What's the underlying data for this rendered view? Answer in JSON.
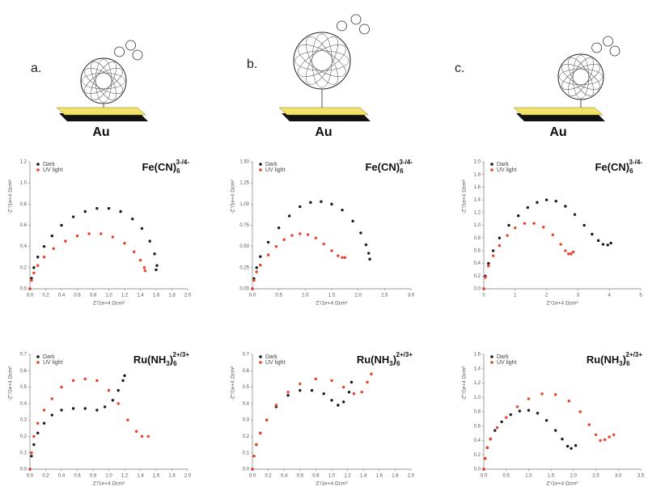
{
  "panels": [
    {
      "label": "a.",
      "substrate": "Au"
    },
    {
      "label": "b.",
      "substrate": "Au"
    },
    {
      "label": "c.",
      "substrate": "Au"
    }
  ],
  "chart_data": [
    {
      "type": "scatter",
      "formula": {
        "base": "Fe(CN)",
        "sub": "6",
        "sup": "3-/4-"
      },
      "x_label": "Z'/1e+4 Ωcm²",
      "y_label": "-Z''/1e+4 Ωcm²",
      "xlim": [
        0,
        2
      ],
      "xticks": [
        {
          "value": 0,
          "label": "0.0"
        },
        0.2,
        0.4,
        0.6,
        0.8,
        {
          "value": 1,
          "label": "1.0"
        },
        1.2,
        1.4,
        1.6,
        1.8,
        {
          "value": 2,
          "label": "2.0"
        }
      ],
      "ylim": [
        0,
        1.2
      ],
      "yticks": [
        {
          "value": 0,
          "label": "0.0"
        },
        0.2,
        0.4,
        0.6,
        0.8,
        {
          "value": 1,
          "label": "1.0"
        },
        1.2
      ],
      "series": [
        {
          "name": "Dark",
          "color": "#1a1a1a",
          "x": [
            0,
            0.02,
            0.05,
            0.1,
            0.18,
            0.28,
            0.4,
            0.55,
            0.7,
            0.85,
            1.0,
            1.15,
            1.3,
            1.42,
            1.52,
            1.58,
            1.61,
            1.6
          ],
          "values": [
            0,
            0.1,
            0.2,
            0.3,
            0.4,
            0.5,
            0.6,
            0.68,
            0.73,
            0.76,
            0.76,
            0.73,
            0.66,
            0.57,
            0.45,
            0.33,
            0.22,
            0.18
          ]
        },
        {
          "name": "UV light",
          "color": "#e8402a",
          "x": [
            0,
            0.02,
            0.05,
            0.1,
            0.18,
            0.3,
            0.45,
            0.6,
            0.75,
            0.9,
            1.05,
            1.2,
            1.32,
            1.4,
            1.45,
            1.46
          ],
          "values": [
            0,
            0.08,
            0.15,
            0.22,
            0.3,
            0.38,
            0.45,
            0.5,
            0.52,
            0.52,
            0.49,
            0.43,
            0.35,
            0.27,
            0.2,
            0.17
          ]
        }
      ]
    },
    {
      "type": "scatter",
      "formula": {
        "base": "Fe(CN)",
        "sub": "6",
        "sup": "3-/4-"
      },
      "x_label": "Z'/1e+4 Ωcm²",
      "y_label": "-Z''/1e+4 Ωcm²",
      "xlim": [
        0,
        3
      ],
      "xticks": [
        {
          "value": 0,
          "label": "0.0"
        },
        0.5,
        {
          "value": 1,
          "label": "1.0"
        },
        1.5,
        {
          "value": 2,
          "label": "2.0"
        },
        2.5,
        {
          "value": 3,
          "label": "3.0"
        }
      ],
      "ylim": [
        0,
        1.5
      ],
      "yticks": [
        {
          "value": 0,
          "label": "0.00"
        },
        0.25,
        {
          "value": 0.5,
          "label": "0.50"
        },
        0.75,
        {
          "value": 1,
          "label": "1.00"
        },
        1.25,
        {
          "value": 1.5,
          "label": "1.50"
        }
      ],
      "series": [
        {
          "name": "Dark",
          "color": "#1a1a1a",
          "x": [
            0,
            0.03,
            0.08,
            0.15,
            0.3,
            0.5,
            0.7,
            0.9,
            1.1,
            1.3,
            1.5,
            1.7,
            1.9,
            2.05,
            2.15,
            2.2,
            2.22
          ],
          "values": [
            0,
            0.12,
            0.25,
            0.38,
            0.55,
            0.72,
            0.86,
            0.97,
            1.02,
            1.03,
            1.0,
            0.93,
            0.8,
            0.66,
            0.52,
            0.42,
            0.35
          ]
        },
        {
          "name": "UV light",
          "color": "#e8402a",
          "x": [
            0,
            0.03,
            0.08,
            0.15,
            0.3,
            0.45,
            0.6,
            0.75,
            0.9,
            1.05,
            1.2,
            1.35,
            1.5,
            1.62,
            1.7,
            1.75
          ],
          "values": [
            0,
            0.1,
            0.2,
            0.28,
            0.4,
            0.5,
            0.58,
            0.63,
            0.65,
            0.64,
            0.6,
            0.53,
            0.45,
            0.39,
            0.37,
            0.37
          ]
        }
      ]
    },
    {
      "type": "scatter",
      "formula": {
        "base": "Fe(CN)",
        "sub": "6",
        "sup": "3-/4-"
      },
      "x_label": "Z'/1e+4 Ωcm²",
      "y_label": "-Z''/1e+4 Ωcm²",
      "xlim": [
        0,
        5
      ],
      "xticks": [
        0,
        1,
        2,
        3,
        4,
        5
      ],
      "ylim": [
        0,
        2
      ],
      "yticks": [
        {
          "value": 0,
          "label": "0.0"
        },
        0.2,
        0.4,
        0.6,
        0.8,
        {
          "value": 1,
          "label": "1.0"
        },
        1.2,
        1.4,
        1.6,
        1.8,
        {
          "value": 2,
          "label": "2.0"
        }
      ],
      "series": [
        {
          "name": "Dark",
          "color": "#1a1a1a",
          "x": [
            0,
            0.05,
            0.15,
            0.3,
            0.5,
            0.8,
            1.1,
            1.4,
            1.7,
            2.0,
            2.3,
            2.6,
            2.9,
            3.2,
            3.45,
            3.65,
            3.8,
            3.95,
            4.05
          ],
          "values": [
            0,
            0.2,
            0.4,
            0.6,
            0.8,
            1.0,
            1.15,
            1.28,
            1.36,
            1.4,
            1.38,
            1.3,
            1.17,
            1.0,
            0.86,
            0.76,
            0.7,
            0.69,
            0.72
          ]
        },
        {
          "name": "UV light",
          "color": "#e8402a",
          "x": [
            0,
            0.05,
            0.15,
            0.3,
            0.5,
            0.75,
            1.0,
            1.3,
            1.6,
            1.9,
            2.2,
            2.45,
            2.6,
            2.7,
            2.78,
            2.85
          ],
          "values": [
            0,
            0.18,
            0.36,
            0.52,
            0.68,
            0.84,
            0.96,
            1.03,
            1.03,
            0.97,
            0.85,
            0.7,
            0.6,
            0.55,
            0.55,
            0.58
          ]
        }
      ]
    },
    {
      "type": "scatter",
      "formula": {
        "base": "Ru(NH",
        "sub": "3",
        "close": ")",
        "sub2": "6",
        "sup": "2+/3+"
      },
      "x_label": "Z'/1e+4 Ωcm²",
      "y_label": "-Z''/1e+4 Ωcm²",
      "xlim": [
        0,
        2
      ],
      "xticks": [
        {
          "value": 0,
          "label": "0.0"
        },
        0.2,
        0.4,
        0.6,
        0.8,
        {
          "value": 1,
          "label": "1.0"
        },
        1.2,
        1.4,
        1.6,
        1.8,
        {
          "value": 2,
          "label": "2.0"
        }
      ],
      "ylim": [
        0,
        0.7
      ],
      "yticks": [
        {
          "value": 0,
          "label": "0.0"
        },
        0.1,
        0.2,
        0.3,
        0.4,
        0.5,
        0.6,
        0.7
      ],
      "series": [
        {
          "name": "Dark",
          "color": "#1a1a1a",
          "x": [
            0,
            0.02,
            0.05,
            0.1,
            0.18,
            0.28,
            0.4,
            0.55,
            0.7,
            0.85,
            0.95,
            1.05,
            1.12,
            1.18,
            1.2
          ],
          "values": [
            0,
            0.08,
            0.15,
            0.22,
            0.28,
            0.33,
            0.36,
            0.37,
            0.37,
            0.36,
            0.38,
            0.42,
            0.48,
            0.54,
            0.57
          ]
        },
        {
          "name": "UV light",
          "color": "#e8402a",
          "x": [
            0,
            0.02,
            0.05,
            0.1,
            0.18,
            0.28,
            0.4,
            0.55,
            0.7,
            0.85,
            1.0,
            1.12,
            1.24,
            1.35,
            1.42,
            1.5
          ],
          "values": [
            0,
            0.1,
            0.2,
            0.28,
            0.36,
            0.43,
            0.5,
            0.54,
            0.55,
            0.54,
            0.48,
            0.4,
            0.3,
            0.23,
            0.2,
            0.2
          ]
        }
      ]
    },
    {
      "type": "scatter",
      "formula": {
        "base": "Ru(NH",
        "sub": "3",
        "close": ")",
        "sub2": "6",
        "sup": "2+/3+"
      },
      "x_label": "Z'/1e+4 Ωcm²",
      "y_label": "-Z''/1e+4 Ωcm²",
      "xlim": [
        0,
        2
      ],
      "xticks": [
        {
          "value": 0,
          "label": "0.0"
        },
        0.2,
        0.4,
        0.6,
        0.8,
        {
          "value": 1,
          "label": "1.0"
        },
        1.2,
        1.4,
        1.6,
        1.8,
        {
          "value": 2,
          "label": "2.0"
        }
      ],
      "ylim": [
        0,
        0.7
      ],
      "yticks": [
        {
          "value": 0,
          "label": "0.0"
        },
        0.1,
        0.2,
        0.3,
        0.4,
        0.5,
        0.6,
        0.7
      ],
      "series": [
        {
          "name": "Dark",
          "color": "#1a1a1a",
          "x": [
            0,
            0.02,
            0.05,
            0.1,
            0.18,
            0.3,
            0.45,
            0.6,
            0.75,
            0.9,
            1.0,
            1.08,
            1.15,
            1.22,
            1.25
          ],
          "values": [
            0,
            0.08,
            0.15,
            0.22,
            0.3,
            0.38,
            0.45,
            0.48,
            0.48,
            0.46,
            0.42,
            0.39,
            0.41,
            0.47,
            0.53
          ]
        },
        {
          "name": "UV light",
          "color": "#e8402a",
          "x": [
            0,
            0.02,
            0.05,
            0.1,
            0.18,
            0.3,
            0.45,
            0.6,
            0.8,
            1.0,
            1.15,
            1.28,
            1.38,
            1.45,
            1.5
          ],
          "values": [
            0,
            0.08,
            0.15,
            0.22,
            0.3,
            0.39,
            0.47,
            0.52,
            0.55,
            0.54,
            0.5,
            0.46,
            0.47,
            0.53,
            0.58
          ]
        }
      ]
    },
    {
      "type": "scatter",
      "formula": {
        "base": "Ru(NH",
        "sub": "3",
        "close": ")",
        "sub2": "6",
        "sup": "2+/3+"
      },
      "x_label": "Z'/1e+4 Ωcm²",
      "y_label": "-Z''/1e+4 Ωcm²",
      "xlim": [
        0,
        3.5
      ],
      "xticks": [
        {
          "value": 0,
          "label": "0.0"
        },
        0.5,
        {
          "value": 1,
          "label": "1.0"
        },
        1.5,
        {
          "value": 2,
          "label": "2.0"
        },
        2.5,
        {
          "value": 3,
          "label": "3.0"
        },
        3.5
      ],
      "ylim": [
        0,
        1.6
      ],
      "yticks": [
        {
          "value": 0,
          "label": "0.0"
        },
        0.2,
        0.4,
        0.6,
        0.8,
        {
          "value": 1,
          "label": "1.0"
        },
        1.2,
        1.4,
        1.6
      ],
      "series": [
        {
          "name": "Dark",
          "color": "#1a1a1a",
          "x": [
            0,
            0.03,
            0.08,
            0.15,
            0.25,
            0.4,
            0.6,
            0.8,
            1.0,
            1.2,
            1.4,
            1.6,
            1.75,
            1.87,
            1.95,
            2.05
          ],
          "values": [
            0,
            0.15,
            0.3,
            0.42,
            0.54,
            0.66,
            0.76,
            0.81,
            0.82,
            0.78,
            0.68,
            0.54,
            0.42,
            0.32,
            0.29,
            0.33
          ]
        },
        {
          "name": "UV light",
          "color": "#e8402a",
          "x": [
            0,
            0.03,
            0.08,
            0.15,
            0.3,
            0.5,
            0.75,
            1.0,
            1.3,
            1.6,
            1.9,
            2.15,
            2.35,
            2.5,
            2.6,
            2.7,
            2.8,
            2.9
          ],
          "values": [
            0,
            0.15,
            0.3,
            0.42,
            0.58,
            0.72,
            0.87,
            0.98,
            1.05,
            1.04,
            0.95,
            0.8,
            0.62,
            0.48,
            0.4,
            0.41,
            0.45,
            0.48
          ]
        }
      ]
    }
  ]
}
